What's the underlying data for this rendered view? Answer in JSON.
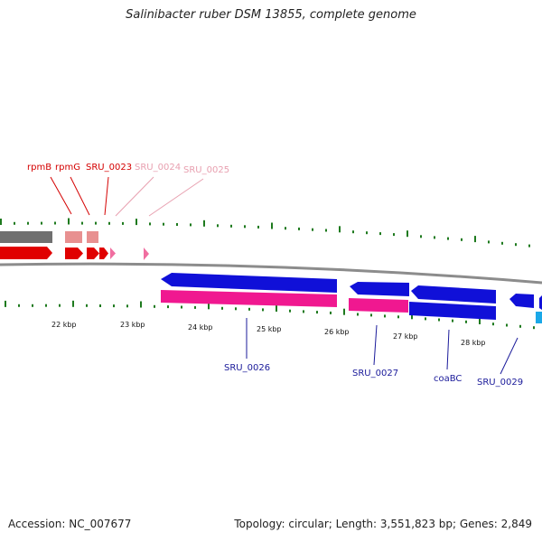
{
  "title": "Salinibacter ruber DSM 13855, complete genome",
  "footer": {
    "accession": "Accession: NC_007677",
    "stats": "Topology: circular; Length: 3,551,823 bp; Genes: 2,849"
  },
  "colors": {
    "backbone": "#8c8c8c",
    "tick": "#1e7a1e",
    "forward_gene": "#e00000",
    "forward_rna": "#f06ea0",
    "reverse_gene": "#1010d8",
    "reverse_rna": "#f01890",
    "locus_tag_forward": "#d40000",
    "locus_tag_forward_light": "#e8a0b0",
    "locus_tag_reverse": "#1a1a9a"
  },
  "scale_labels": [
    "22 kbp",
    "23 kbp",
    "24 kbp",
    "25 kbp",
    "26 kbp",
    "27 kbp",
    "28 kbp"
  ],
  "forward_labels": [
    {
      "text": "rpmB",
      "tone": "dark"
    },
    {
      "text": "rpmG",
      "tone": "dark"
    },
    {
      "text": "SRU_0023",
      "tone": "dark"
    },
    {
      "text": "SRU_0024",
      "tone": "light"
    },
    {
      "text": "SRU_0025",
      "tone": "light"
    }
  ],
  "reverse_labels": [
    "SRU_0026",
    "SRU_0027",
    "coaBC",
    "SRU_0029"
  ]
}
